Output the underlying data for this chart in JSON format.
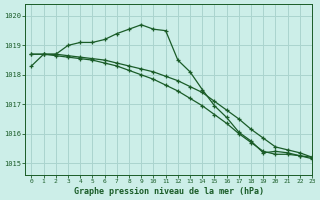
{
  "title": "Graphe pression niveau de la mer (hPa)",
  "bg_color": "#cceee8",
  "grid_color": "#aad4ce",
  "line_color": "#1a5c28",
  "xlim": [
    -0.5,
    23
  ],
  "ylim": [
    1014.6,
    1020.4
  ],
  "yticks": [
    1015,
    1016,
    1017,
    1018,
    1019,
    1020
  ],
  "xticks": [
    0,
    1,
    2,
    3,
    4,
    5,
    6,
    7,
    8,
    9,
    10,
    11,
    12,
    13,
    14,
    15,
    16,
    17,
    18,
    19,
    20,
    21,
    22,
    23
  ],
  "series1": [
    1018.3,
    1018.7,
    1018.7,
    1019.0,
    1019.1,
    1019.1,
    1019.2,
    1019.4,
    1019.55,
    1019.7,
    1019.55,
    1019.5,
    1018.5,
    1018.1,
    1017.5,
    1016.95,
    1016.55,
    1016.05,
    1015.75,
    1015.35,
    1015.4,
    1015.35,
    1015.25,
    1015.2
  ],
  "series2": [
    1018.7,
    1018.7,
    1018.7,
    1018.65,
    1018.6,
    1018.55,
    1018.5,
    1018.4,
    1018.3,
    1018.2,
    1018.1,
    1017.95,
    1017.8,
    1017.6,
    1017.4,
    1017.1,
    1016.8,
    1016.5,
    1016.15,
    1015.85,
    1015.55,
    1015.45,
    1015.35,
    1015.2
  ],
  "series3": [
    1018.7,
    1018.7,
    1018.65,
    1018.6,
    1018.55,
    1018.5,
    1018.4,
    1018.3,
    1018.15,
    1018.0,
    1017.85,
    1017.65,
    1017.45,
    1017.2,
    1016.95,
    1016.65,
    1016.35,
    1016.0,
    1015.7,
    1015.4,
    1015.3,
    1015.3,
    1015.25,
    1015.15
  ],
  "markersize": 3.5,
  "linewidth": 0.9
}
